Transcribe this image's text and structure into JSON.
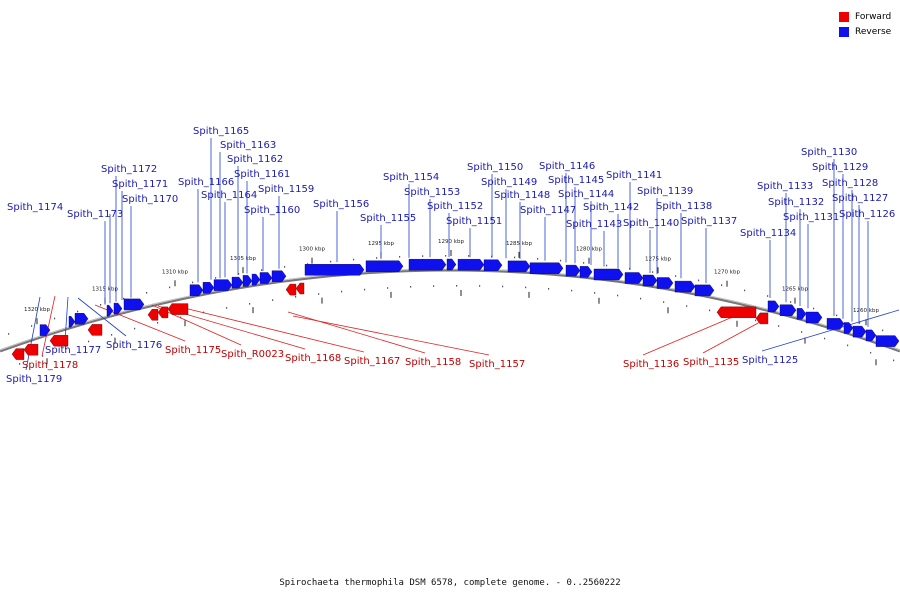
{
  "legend": {
    "forward_label": "Forward",
    "reverse_label": "Reverse",
    "forward_color": "#ee0000",
    "reverse_color": "#0f10ee"
  },
  "caption": "Spirochaeta thermophila DSM 6578, complete genome. - 0..2560222",
  "ticks": [
    "1320 kbp",
    "1315 kbp",
    "1310 kbp",
    "1305 kbp",
    "1300 kbp",
    "1295 kbp",
    "1290 kbp",
    "1285 kbp",
    "1280 kbp",
    "1275 kbp",
    "1270 kbp",
    "1265 kbp",
    "1260 kbp"
  ],
  "genes": [
    {
      "name": "Spith_1174",
      "strand": "reverse"
    },
    {
      "name": "Spith_1173",
      "strand": "reverse"
    },
    {
      "name": "Spith_1172",
      "strand": "reverse"
    },
    {
      "name": "Spith_1171",
      "strand": "reverse"
    },
    {
      "name": "Spith_1170",
      "strand": "reverse"
    },
    {
      "name": "Spith_1166",
      "strand": "reverse"
    },
    {
      "name": "Spith_1165",
      "strand": "reverse"
    },
    {
      "name": "Spith_1164",
      "strand": "reverse"
    },
    {
      "name": "Spith_1163",
      "strand": "reverse"
    },
    {
      "name": "Spith_1162",
      "strand": "reverse"
    },
    {
      "name": "Spith_1161",
      "strand": "reverse"
    },
    {
      "name": "Spith_1160",
      "strand": "reverse"
    },
    {
      "name": "Spith_1159",
      "strand": "reverse"
    },
    {
      "name": "Spith_1156",
      "strand": "reverse"
    },
    {
      "name": "Spith_1155",
      "strand": "reverse"
    },
    {
      "name": "Spith_1154",
      "strand": "reverse"
    },
    {
      "name": "Spith_1153",
      "strand": "reverse"
    },
    {
      "name": "Spith_1152",
      "strand": "reverse"
    },
    {
      "name": "Spith_1151",
      "strand": "reverse"
    },
    {
      "name": "Spith_1150",
      "strand": "reverse"
    },
    {
      "name": "Spith_1149",
      "strand": "reverse"
    },
    {
      "name": "Spith_1148",
      "strand": "reverse"
    },
    {
      "name": "Spith_1147",
      "strand": "reverse"
    },
    {
      "name": "Spith_1146",
      "strand": "reverse"
    },
    {
      "name": "Spith_1145",
      "strand": "reverse"
    },
    {
      "name": "Spith_1144",
      "strand": "reverse"
    },
    {
      "name": "Spith_1143",
      "strand": "reverse"
    },
    {
      "name": "Spith_1142",
      "strand": "reverse"
    },
    {
      "name": "Spith_1141",
      "strand": "reverse"
    },
    {
      "name": "Spith_1140",
      "strand": "reverse"
    },
    {
      "name": "Spith_1139",
      "strand": "reverse"
    },
    {
      "name": "Spith_1138",
      "strand": "reverse"
    },
    {
      "name": "Spith_1137",
      "strand": "reverse"
    },
    {
      "name": "Spith_1134",
      "strand": "reverse"
    },
    {
      "name": "Spith_1133",
      "strand": "reverse"
    },
    {
      "name": "Spith_1132",
      "strand": "reverse"
    },
    {
      "name": "Spith_1131",
      "strand": "reverse"
    },
    {
      "name": "Spith_1130",
      "strand": "reverse"
    },
    {
      "name": "Spith_1129",
      "strand": "reverse"
    },
    {
      "name": "Spith_1128",
      "strand": "reverse"
    },
    {
      "name": "Spith_1127",
      "strand": "reverse"
    },
    {
      "name": "Spith_1126",
      "strand": "reverse"
    },
    {
      "name": "Spith_1179",
      "strand": "reverse"
    },
    {
      "name": "Spith_1178",
      "strand": "forward"
    },
    {
      "name": "Spith_1177",
      "strand": "reverse"
    },
    {
      "name": "Spith_1176",
      "strand": "reverse"
    },
    {
      "name": "Spith_1175",
      "strand": "forward"
    },
    {
      "name": "Spith_R0023",
      "strand": "forward"
    },
    {
      "name": "Spith_1168",
      "strand": "forward"
    },
    {
      "name": "Spith_1167",
      "strand": "forward"
    },
    {
      "name": "Spith_1158",
      "strand": "forward"
    },
    {
      "name": "Spith_1157",
      "strand": "forward"
    },
    {
      "name": "Spith_1136",
      "strand": "forward"
    },
    {
      "name": "Spith_1135",
      "strand": "forward"
    },
    {
      "name": "Spith_1125",
      "strand": "reverse"
    }
  ]
}
